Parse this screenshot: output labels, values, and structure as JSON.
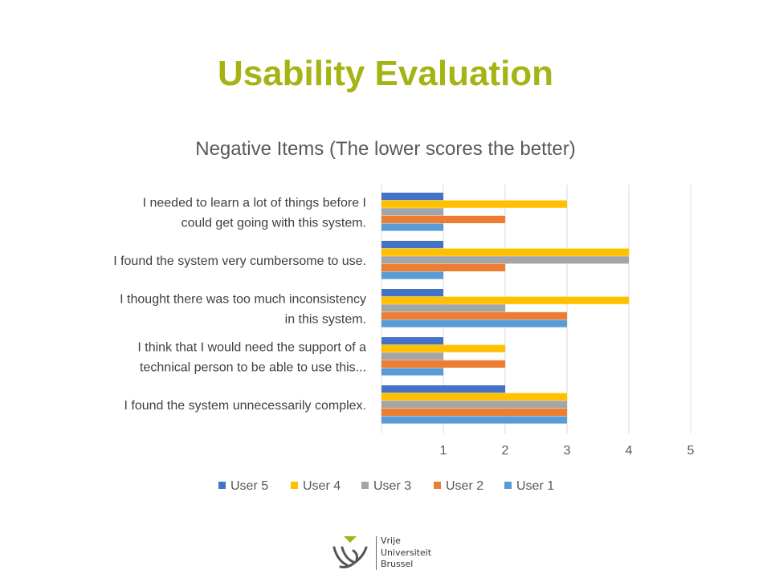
{
  "slide": {
    "title": "Usability Evaluation"
  },
  "chart_data": {
    "type": "bar",
    "orientation": "horizontal",
    "title": "Negative Items (The lower scores the better)",
    "xlim": [
      0,
      5
    ],
    "xticks": [
      1,
      2,
      3,
      4,
      5
    ],
    "grid": true,
    "legend_position": "bottom",
    "categories": [
      [
        "I needed to learn a lot of things before I",
        "could get going with this system."
      ],
      [
        "I found the system very cumbersome to use."
      ],
      [
        "I thought there was too much inconsistency",
        "in this system."
      ],
      [
        "I think that I would need the support of a",
        "technical person to be able to use this..."
      ],
      [
        "I found the system unnecessarily complex."
      ]
    ],
    "series": [
      {
        "name": "User 5",
        "color": "#4472c4",
        "values": [
          1,
          1,
          1,
          1,
          2
        ]
      },
      {
        "name": "User 4",
        "color": "#ffc000",
        "values": [
          3,
          4,
          4,
          2,
          3
        ]
      },
      {
        "name": "User 3",
        "color": "#a5a5a5",
        "values": [
          1,
          4,
          2,
          1,
          3
        ]
      },
      {
        "name": "User 2",
        "color": "#ed7d31",
        "values": [
          2,
          2,
          3,
          2,
          3
        ]
      },
      {
        "name": "User 1",
        "color": "#5b9bd5",
        "values": [
          1,
          1,
          3,
          1,
          3
        ]
      }
    ]
  },
  "logo": {
    "lines": [
      "Vrije",
      "Universiteit",
      "Brussel"
    ],
    "accent_color": "#a5b414"
  }
}
